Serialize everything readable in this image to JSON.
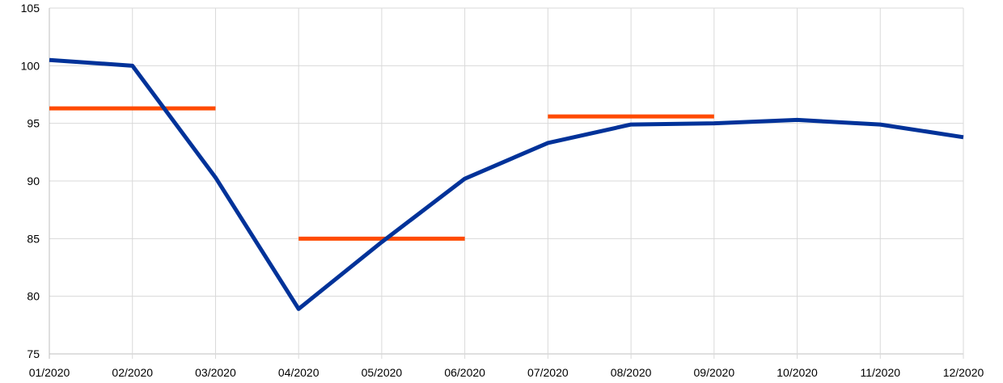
{
  "chart_data": {
    "type": "line",
    "title": "",
    "xlabel": "",
    "ylabel": "",
    "categories": [
      "01/2020",
      "02/2020",
      "03/2020",
      "04/2020",
      "05/2020",
      "06/2020",
      "07/2020",
      "08/2020",
      "09/2020",
      "10/2020",
      "11/2020",
      "12/2020"
    ],
    "ylim": [
      75,
      105
    ],
    "yticks": [
      75,
      80,
      85,
      90,
      95,
      100,
      105
    ],
    "grid": true,
    "legend": "none",
    "series": [
      {
        "color": "#003299",
        "values": [
          100.5,
          100.0,
          90.3,
          78.9,
          84.7,
          90.2,
          93.3,
          94.9,
          95.0,
          95.3,
          94.9,
          93.8
        ]
      }
    ],
    "segments": [
      {
        "color": "#ff4b00",
        "x_start": "01/2020",
        "x_end": "03/2020",
        "value": 96.3
      },
      {
        "color": "#ff4b00",
        "x_start": "04/2020",
        "x_end": "06/2020",
        "value": 85.0
      },
      {
        "color": "#ff4b00",
        "x_start": "07/2020",
        "x_end": "09/2020",
        "value": 95.6
      }
    ]
  }
}
